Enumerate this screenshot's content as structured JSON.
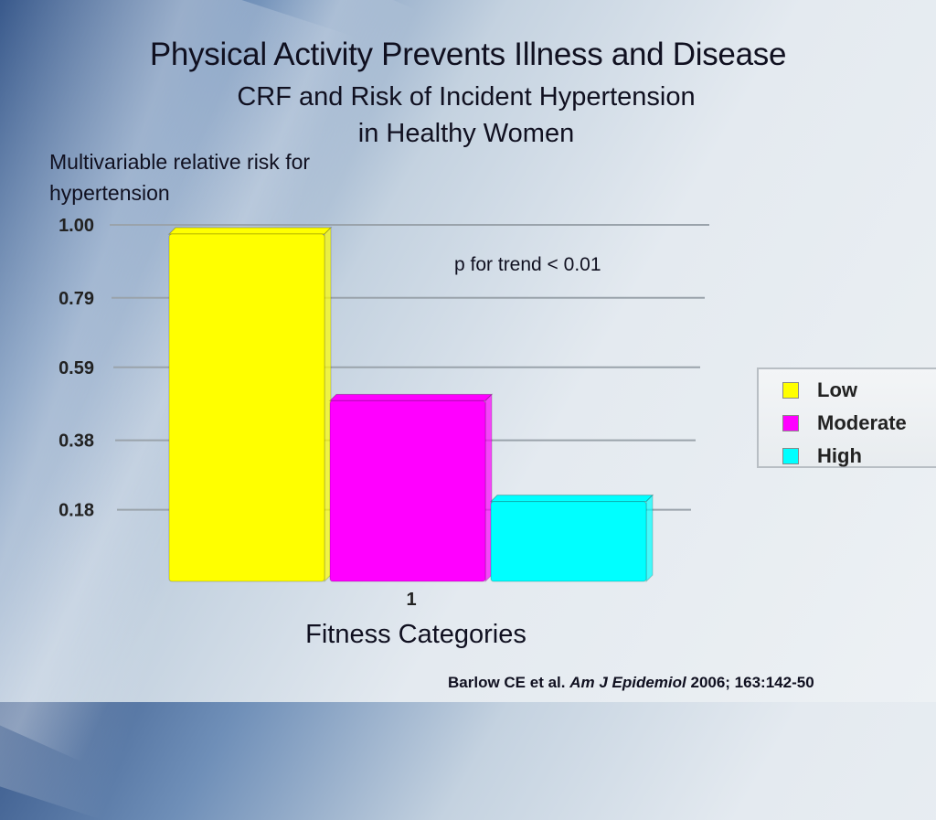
{
  "slide": {
    "title": "Physical Activity Prevents Illness and Disease",
    "subtitle": "CRF and Risk of Incident Hypertension in Healthy Women",
    "annotation": "p for trend < 0.01",
    "citation_authors": "Barlow CE et al.",
    "citation_journal": "Am J Epidemiol",
    "citation_details": "2006; 163:142-50"
  },
  "chart_data": {
    "type": "bar",
    "categories": [
      "1"
    ],
    "ylabel": "Multivariable relative risk for hypertension",
    "xlabel": "Fitness Categories",
    "yticks": [
      1.0,
      0.79,
      0.59,
      0.38,
      0.18
    ],
    "ytick_labels": [
      "1.00",
      "0.79",
      "0.59",
      "0.38",
      "0.18"
    ],
    "ylim": [
      0,
      1.0
    ],
    "grid": true,
    "legend_position": "right",
    "series": [
      {
        "name": "Low",
        "values": [
          1.0
        ],
        "color": "#ffff00"
      },
      {
        "name": "Moderate",
        "values": [
          0.52
        ],
        "color": "#ff00ff"
      },
      {
        "name": "High",
        "values": [
          0.23
        ],
        "color": "#00ffff"
      }
    ]
  }
}
